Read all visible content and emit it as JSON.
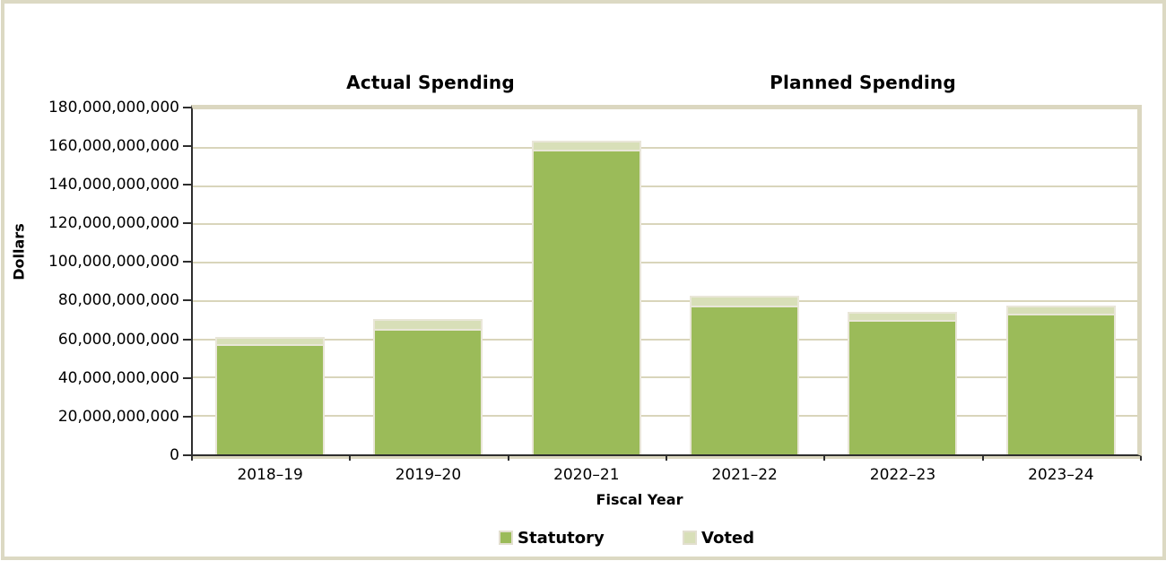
{
  "chart_data": {
    "type": "bar",
    "stacked": true,
    "section_titles": [
      "Actual Spending",
      "Planned Spending"
    ],
    "xlabel": "Fiscal Year",
    "ylabel": "Dollars",
    "categories": [
      "2018–19",
      "2019–20",
      "2020–21",
      "2021–22",
      "2022–23",
      "2023–24"
    ],
    "series": [
      {
        "name": "Statutory",
        "color": "#9BBB59",
        "border_color": "#E9E6D8",
        "values": [
          57500000000,
          65500000000,
          159000000000,
          77500000000,
          70000000000,
          73500000000
        ]
      },
      {
        "name": "Voted",
        "color": "#D8DFB8",
        "border_color": "#E9E6D8",
        "values": [
          3700000000,
          4900000000,
          4500000000,
          5500000000,
          4500000000,
          4300000000
        ]
      }
    ],
    "totals": [
      61200000000,
      70400000000,
      163500000000,
      83000000000,
      74500000000,
      77800000000
    ],
    "ylim": [
      0,
      180000000000
    ],
    "y_tick_step": 20000000000,
    "y_tick_labels_top_down": [
      "180,000,000,000",
      "160,000,000,000",
      "140,000,000,000",
      "120,000,000,000",
      "100,000,000,000",
      "80,000,000,000",
      "60,000,000,000",
      "40,000,000,000",
      "20,000,000,000",
      "0"
    ],
    "grid": "horizontal",
    "legend_position": "bottom",
    "accent_colors": {
      "gridline": "#D9D5BB",
      "plot_border": "#DBD7C0",
      "outer_frame": "#DCD9C3",
      "axis": "#2E2E2E"
    }
  }
}
